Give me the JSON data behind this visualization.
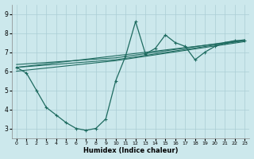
{
  "xlabel": "Humidex (Indice chaleur)",
  "bg_color": "#cce8ec",
  "grid_color": "#aacdd4",
  "line_color": "#1e6b60",
  "xlim": [
    -0.5,
    23.5
  ],
  "ylim": [
    2.5,
    9.5
  ],
  "xticks": [
    0,
    1,
    2,
    3,
    4,
    5,
    6,
    7,
    8,
    9,
    10,
    11,
    12,
    13,
    14,
    15,
    16,
    17,
    18,
    19,
    20,
    21,
    22,
    23
  ],
  "yticks": [
    3,
    4,
    5,
    6,
    7,
    8,
    9
  ],
  "main_x": [
    0,
    1,
    2,
    3,
    4,
    5,
    6,
    7,
    8,
    9,
    10,
    11,
    12,
    13,
    14,
    15,
    16,
    17,
    18,
    19,
    20,
    21,
    22,
    23
  ],
  "main_y": [
    6.2,
    5.9,
    5.0,
    4.1,
    3.7,
    3.3,
    3.0,
    2.9,
    3.0,
    3.5,
    5.5,
    6.8,
    8.6,
    6.9,
    7.2,
    7.9,
    7.5,
    7.3,
    6.6,
    7.0,
    7.3,
    7.5,
    7.6,
    7.6
  ],
  "trend1_x": [
    0,
    23
  ],
  "trend1_y": [
    6.2,
    7.6
  ],
  "trend2_x": [
    0,
    10,
    23
  ],
  "trend2_y": [
    6.0,
    6.55,
    7.55
  ],
  "trend3_x": [
    0,
    10,
    23
  ],
  "trend3_y": [
    6.35,
    6.7,
    7.65
  ],
  "trend4_x": [
    0,
    10,
    23
  ],
  "trend4_y": [
    6.2,
    6.6,
    7.6
  ]
}
